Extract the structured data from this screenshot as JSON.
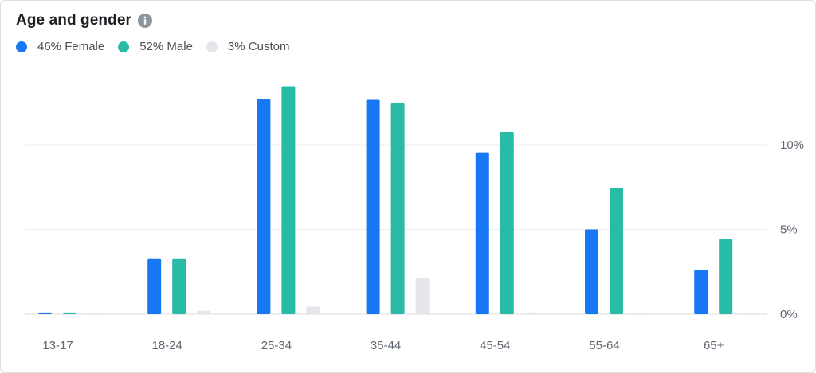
{
  "title": "Age and gender",
  "info_icon": "info-icon",
  "legend": [
    {
      "label": "46% Female",
      "color": "#1877f2"
    },
    {
      "label": "52% Male",
      "color": "#2abba7"
    },
    {
      "label": "3% Custom",
      "color": "#e4e6eb"
    }
  ],
  "chart_data": {
    "type": "bar",
    "categories": [
      "13-17",
      "18-24",
      "25-34",
      "35-44",
      "45-54",
      "55-64",
      "65+"
    ],
    "series": [
      {
        "name": "Female",
        "color": "#1877f2",
        "values": [
          0.1,
          3.25,
          12.7,
          12.65,
          9.55,
          5.0,
          2.6
        ]
      },
      {
        "name": "Male",
        "color": "#2abba7",
        "values": [
          0.1,
          3.25,
          13.45,
          12.45,
          10.75,
          7.45,
          4.45
        ]
      },
      {
        "name": "Custom",
        "color": "#e4e6eb",
        "values": [
          0.0,
          0.2,
          0.45,
          2.15,
          0.1,
          0.05,
          0.05
        ]
      }
    ],
    "y_ticks": [
      "0%",
      "5%",
      "10%"
    ],
    "y_tick_values": [
      0,
      5,
      10
    ],
    "ylim": [
      0,
      15
    ],
    "grid": true,
    "y_axis_position": "right",
    "legend_position": "top-left"
  }
}
